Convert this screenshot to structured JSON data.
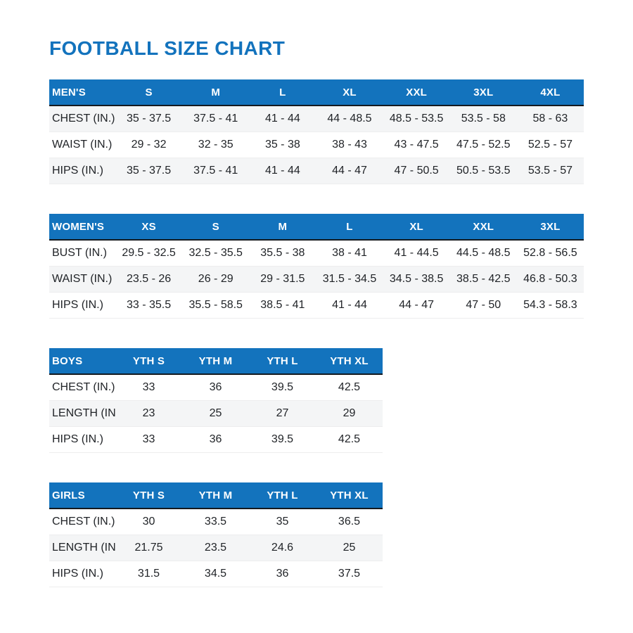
{
  "page": {
    "title": "FOOTBALL SIZE CHART"
  },
  "colors": {
    "accent_blue": "#1373bd",
    "header_text": "#ffffff",
    "row_stripe": "#f4f5f6",
    "header_underline": "#141a20",
    "body_text": "#1f2226"
  },
  "tables": [
    {
      "id": "mens",
      "header": [
        "MEN'S",
        "S",
        "M",
        "L",
        "XL",
        "XXL",
        "3XL",
        "4XL"
      ],
      "rows": [
        {
          "label": "CHEST (IN.)",
          "values": [
            "35 - 37.5",
            "37.5 - 41",
            "41 - 44",
            "44 - 48.5",
            "48.5 - 53.5",
            "53.5 - 58",
            "58 - 63"
          ]
        },
        {
          "label": "WAIST (IN.)",
          "values": [
            "29 - 32",
            "32 - 35",
            "35 - 38",
            "38 - 43",
            "43 - 47.5",
            "47.5 - 52.5",
            "52.5 - 57"
          ]
        },
        {
          "label": "HIPS (IN.)",
          "values": [
            "35 - 37.5",
            "37.5 - 41",
            "41 - 44",
            "44 - 47",
            "47 - 50.5",
            "50.5 - 53.5",
            "53.5 - 57"
          ]
        }
      ]
    },
    {
      "id": "womens",
      "header": [
        "WOMEN'S",
        "XS",
        "S",
        "M",
        "L",
        "XL",
        "XXL",
        "3XL"
      ],
      "rows": [
        {
          "label": "BUST (IN.)",
          "values": [
            "29.5 - 32.5",
            "32.5 - 35.5",
            "35.5 - 38",
            "38 - 41",
            "41 - 44.5",
            "44.5 - 48.5",
            "52.8 - 56.5"
          ]
        },
        {
          "label": "WAIST (IN.)",
          "values": [
            "23.5 - 26",
            "26 - 29",
            "29 - 31.5",
            "31.5 - 34.5",
            "34.5 - 38.5",
            "38.5 - 42.5",
            "46.8 - 50.3"
          ]
        },
        {
          "label": "HIPS (IN.)",
          "values": [
            "33 - 35.5",
            "35.5 - 58.5",
            "38.5 - 41",
            "41 - 44",
            "44 - 47",
            "47 - 50",
            "54.3 - 58.3"
          ]
        }
      ]
    },
    {
      "id": "boys",
      "header": [
        "BOYS",
        "YTH S",
        "YTH M",
        "YTH L",
        "YTH XL"
      ],
      "rows": [
        {
          "label": "CHEST (IN.)",
          "values": [
            "33",
            "36",
            "39.5",
            "42.5"
          ]
        },
        {
          "label": "LENGTH (IN.)",
          "values": [
            "23",
            "25",
            "27",
            "29"
          ]
        },
        {
          "label": "HIPS (IN.)",
          "values": [
            "33",
            "36",
            "39.5",
            "42.5"
          ]
        }
      ]
    },
    {
      "id": "girls",
      "header": [
        "GIRLS",
        "YTH S",
        "YTH M",
        "YTH L",
        "YTH XL"
      ],
      "rows": [
        {
          "label": "CHEST (IN.)",
          "values": [
            "30",
            "33.5",
            "35",
            "36.5"
          ]
        },
        {
          "label": "LENGTH (IN.)",
          "values": [
            "21.75",
            "23.5",
            "24.6",
            "25"
          ]
        },
        {
          "label": "HIPS (IN.)",
          "values": [
            "31.5",
            "34.5",
            "36",
            "37.5"
          ]
        }
      ]
    }
  ]
}
